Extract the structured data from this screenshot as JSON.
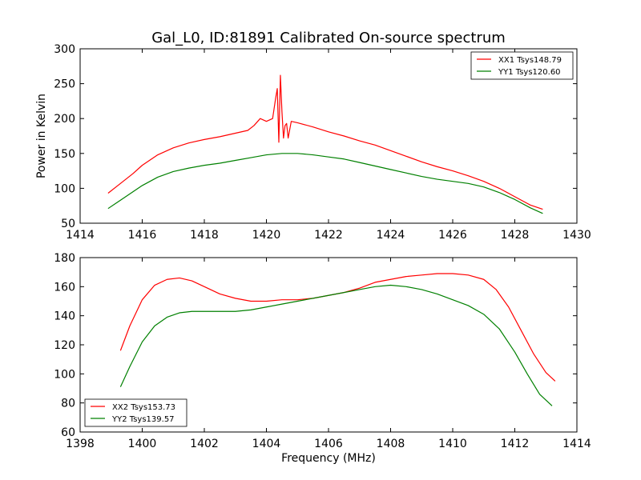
{
  "figure": {
    "title": "Gal_L0, ID:81891 Calibrated On-source spectrum"
  },
  "chart_data": [
    {
      "type": "line",
      "title": "Gal_L0, ID:81891 Calibrated On-source spectrum",
      "xlabel": "",
      "ylabel": "Power in Kelvin",
      "xlim": [
        1414,
        1430
      ],
      "ylim": [
        50,
        300
      ],
      "xticks": [
        1414,
        1416,
        1418,
        1420,
        1422,
        1424,
        1426,
        1428,
        1430
      ],
      "yticks": [
        50,
        100,
        150,
        200,
        250,
        300
      ],
      "grid": false,
      "legend_position": "top-right",
      "series": [
        {
          "name": "XX1 Tsys148.79",
          "color": "#ff0000",
          "x": [
            1414.9,
            1415.3,
            1415.7,
            1416.0,
            1416.5,
            1417.0,
            1417.5,
            1418.0,
            1418.5,
            1419.0,
            1419.4,
            1419.6,
            1419.8,
            1420.0,
            1420.2,
            1420.3,
            1420.35,
            1420.4,
            1420.45,
            1420.5,
            1420.55,
            1420.6,
            1420.65,
            1420.7,
            1420.8,
            1421.0,
            1421.5,
            1422.0,
            1422.5,
            1423.0,
            1423.5,
            1424.0,
            1424.5,
            1425.0,
            1425.5,
            1426.0,
            1426.5,
            1427.0,
            1427.5,
            1428.0,
            1428.5,
            1428.9
          ],
          "y": [
            93,
            107,
            121,
            133,
            148,
            158,
            165,
            170,
            174,
            179,
            183,
            190,
            200,
            196,
            200,
            230,
            243,
            166,
            262,
            210,
            172,
            190,
            193,
            172,
            196,
            194,
            188,
            181,
            175,
            168,
            162,
            154,
            146,
            138,
            131,
            125,
            118,
            110,
            100,
            88,
            76,
            70
          ]
        },
        {
          "name": "YY1 Tsys120.60",
          "color": "#008000",
          "x": [
            1414.9,
            1415.3,
            1415.7,
            1416.0,
            1416.5,
            1417.0,
            1417.5,
            1418.0,
            1418.5,
            1419.0,
            1419.5,
            1420.0,
            1420.5,
            1421.0,
            1421.5,
            1422.0,
            1422.5,
            1423.0,
            1423.5,
            1424.0,
            1424.5,
            1425.0,
            1425.5,
            1426.0,
            1426.5,
            1427.0,
            1427.5,
            1428.0,
            1428.5,
            1428.9
          ],
          "y": [
            71,
            83,
            95,
            104,
            116,
            124,
            129,
            133,
            136,
            140,
            144,
            148,
            150,
            150,
            148,
            145,
            142,
            137,
            132,
            127,
            122,
            117,
            113,
            110,
            107,
            102,
            94,
            84,
            72,
            64
          ]
        }
      ]
    },
    {
      "type": "line",
      "title": "",
      "xlabel": "Frequency (MHz)",
      "ylabel": "",
      "xlim": [
        1398,
        1414
      ],
      "ylim": [
        60,
        180
      ],
      "xticks": [
        1398,
        1400,
        1402,
        1404,
        1406,
        1408,
        1410,
        1412,
        1414
      ],
      "yticks": [
        60,
        80,
        100,
        120,
        140,
        160,
        180
      ],
      "grid": false,
      "legend_position": "bottom-left",
      "series": [
        {
          "name": "XX2 Tsys153.73",
          "color": "#ff0000",
          "x": [
            1399.3,
            1399.6,
            1400.0,
            1400.4,
            1400.8,
            1401.2,
            1401.6,
            1402.0,
            1402.5,
            1403.0,
            1403.5,
            1404.0,
            1404.5,
            1405.0,
            1405.5,
            1406.0,
            1406.5,
            1407.0,
            1407.5,
            1408.0,
            1408.5,
            1409.0,
            1409.5,
            1410.0,
            1410.5,
            1411.0,
            1411.4,
            1411.8,
            1412.2,
            1412.6,
            1413.0,
            1413.3
          ],
          "y": [
            116,
            133,
            151,
            161,
            165,
            166,
            164,
            160,
            155,
            152,
            150,
            150,
            151,
            151,
            152,
            154,
            156,
            159,
            163,
            165,
            167,
            168,
            169,
            169,
            168,
            165,
            158,
            146,
            130,
            114,
            101,
            95
          ]
        },
        {
          "name": "YY2 Tsys139.57",
          "color": "#008000",
          "x": [
            1399.3,
            1399.6,
            1400.0,
            1400.4,
            1400.8,
            1401.2,
            1401.6,
            1402.0,
            1402.5,
            1403.0,
            1403.5,
            1404.0,
            1404.5,
            1405.0,
            1405.5,
            1406.0,
            1406.5,
            1407.0,
            1407.5,
            1408.0,
            1408.5,
            1409.0,
            1409.5,
            1410.0,
            1410.5,
            1411.0,
            1411.5,
            1412.0,
            1412.4,
            1412.8,
            1413.2
          ],
          "y": [
            91,
            105,
            122,
            133,
            139,
            142,
            143,
            143,
            143,
            143,
            144,
            146,
            148,
            150,
            152,
            154,
            156,
            158,
            160,
            161,
            160,
            158,
            155,
            151,
            147,
            141,
            131,
            115,
            100,
            86,
            78
          ]
        }
      ]
    }
  ]
}
